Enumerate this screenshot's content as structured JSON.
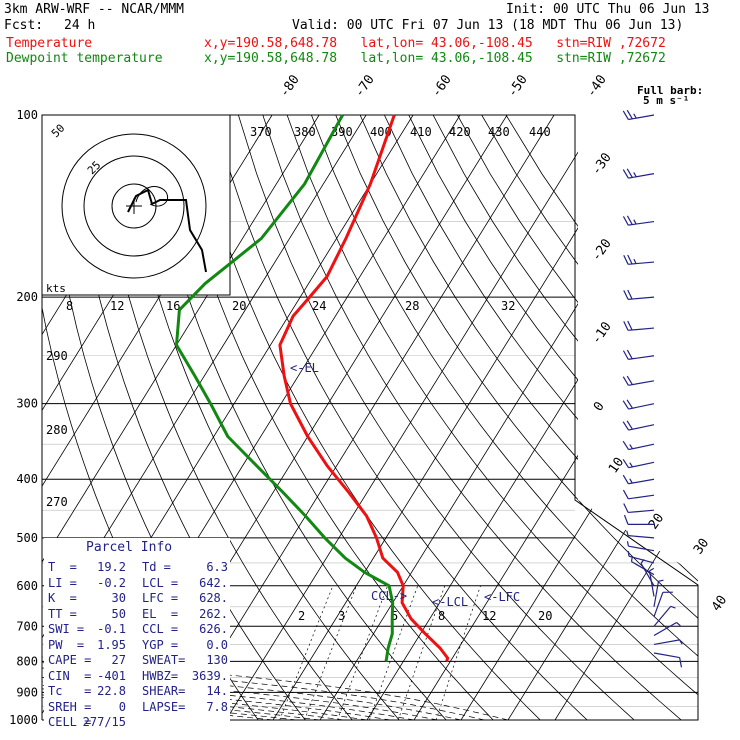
{
  "header": {
    "model": "3km ARW-WRF -- NCAR/MMM",
    "init": "Init: 00 UTC Thu 06 Jun 13",
    "fcst_label": "Fcst:",
    "fcst_value": "24 h",
    "valid": "Valid: 00 UTC Fri 07 Jun 13 (18 MDT Thu 06 Jun 13)",
    "temperature_label": "Temperature",
    "temperature_info": "x,y=190.58,648.78   lat,lon= 43.06,-108.45   stn=RIW ,72672",
    "dewpoint_label": "Dewpoint temperature",
    "dewpoint_info": "x,y=190.58,648.78   lat,lon= 43.06,-108.45   stn=RIW ,72672"
  },
  "colors": {
    "temperature": "#ee1111",
    "dewpoint": "#118811",
    "barbs": "#222288",
    "panel_text": "#222288",
    "grid": "#000000"
  },
  "chart_data": {
    "type": "line",
    "pressure_levels": [
      100,
      200,
      300,
      400,
      500,
      600,
      700,
      800,
      900,
      1000
    ],
    "pressure_labels": [
      "100",
      "200",
      "300",
      "400",
      "500",
      "600",
      "700",
      "800",
      "900",
      "1000"
    ],
    "isotherm_labels": [
      "-80",
      "-70",
      "-60",
      "-50",
      "-40",
      "-30",
      "-20",
      "-10",
      "0",
      "10",
      "20",
      "30",
      "40"
    ],
    "theta_labels": [
      "370",
      "380",
      "390",
      "400",
      "410",
      "420",
      "430",
      "440"
    ],
    "dry_adiabat_labels": [
      "290",
      "280",
      "270"
    ],
    "mixing_ratio_labels": [
      "2",
      "3",
      "5",
      "8",
      "12",
      "20"
    ],
    "series": [
      {
        "name": "Temperature",
        "p": [
          100,
          130,
          160,
          185,
          200,
          215,
          240,
          270,
          300,
          340,
          380,
          420,
          460,
          500,
          540,
          570,
          600,
          640,
          680,
          720,
          760,
          790,
          800
        ],
        "t": [
          -64,
          -60,
          -58,
          -57,
          -58,
          -59,
          -58,
          -53,
          -48,
          -40,
          -32,
          -24,
          -17,
          -12,
          -8,
          -3,
          0,
          2,
          6,
          11,
          16,
          19,
          19.2
        ]
      },
      {
        "name": "Dewpoint temperature",
        "p": [
          100,
          130,
          160,
          190,
          210,
          240,
          270,
          300,
          340,
          380,
          420,
          460,
          500,
          540,
          570,
          600,
          640,
          680,
          720,
          760,
          790,
          800
        ],
        "t": [
          -75,
          -74,
          -76,
          -82,
          -84,
          -80,
          -72,
          -65,
          -57,
          -47,
          -38,
          -30,
          -23,
          -16,
          -10,
          -3,
          0,
          2,
          4,
          5,
          6,
          6.3
        ]
      }
    ],
    "annotations": [
      {
        "text": "<-EL",
        "p": 262,
        "t": -42
      },
      {
        "text": "CCL->",
        "p": 626,
        "t": -8
      },
      {
        "text": "<-LCL",
        "p": 642,
        "t": 1
      },
      {
        "text": "<-LFC",
        "p": 628,
        "t": 9
      }
    ],
    "hodograph": {
      "rings_labels": [
        "50",
        "25"
      ],
      "units": "kts",
      "speed_labels": [
        "8",
        "12",
        "16",
        "20",
        "24",
        "28",
        "32"
      ]
    },
    "wind_barbs_label": {
      "title": "Full barb:",
      "value": "5 m s⁻¹"
    },
    "wind_barbs": [
      {
        "p": 100,
        "dir": 260,
        "spd": 12
      },
      {
        "p": 125,
        "dir": 260,
        "spd": 12
      },
      {
        "p": 150,
        "dir": 262,
        "spd": 12
      },
      {
        "p": 175,
        "dir": 265,
        "spd": 12
      },
      {
        "p": 200,
        "dir": 265,
        "spd": 11
      },
      {
        "p": 225,
        "dir": 265,
        "spd": 11
      },
      {
        "p": 250,
        "dir": 262,
        "spd": 10
      },
      {
        "p": 275,
        "dir": 260,
        "spd": 10
      },
      {
        "p": 300,
        "dir": 258,
        "spd": 9
      },
      {
        "p": 325,
        "dir": 258,
        "spd": 9
      },
      {
        "p": 350,
        "dir": 258,
        "spd": 8
      },
      {
        "p": 375,
        "dir": 258,
        "spd": 8
      },
      {
        "p": 400,
        "dir": 260,
        "spd": 7
      },
      {
        "p": 425,
        "dir": 262,
        "spd": 6
      },
      {
        "p": 450,
        "dir": 265,
        "spd": 5
      },
      {
        "p": 475,
        "dir": 270,
        "spd": 4
      },
      {
        "p": 500,
        "dir": 275,
        "spd": 3
      },
      {
        "p": 525,
        "dir": 280,
        "spd": 3
      },
      {
        "p": 550,
        "dir": 285,
        "spd": 2
      },
      {
        "p": 575,
        "dir": 300,
        "spd": 2
      },
      {
        "p": 600,
        "dir": 330,
        "spd": 2
      },
      {
        "p": 625,
        "dir": 350,
        "spd": 2
      },
      {
        "p": 650,
        "dir": 10,
        "spd": 3
      },
      {
        "p": 675,
        "dir": 20,
        "spd": 4
      },
      {
        "p": 700,
        "dir": 40,
        "spd": 3
      },
      {
        "p": 725,
        "dir": 60,
        "spd": 3
      },
      {
        "p": 750,
        "dir": 80,
        "spd": 3
      },
      {
        "p": 775,
        "dir": 100,
        "spd": 4
      }
    ]
  },
  "parcel_info": {
    "title": "Parcel Info",
    "rows": [
      [
        "T  =",
        "19.2",
        "Td =",
        "6.3"
      ],
      [
        "LI =",
        "-0.2",
        "LCL =",
        "642."
      ],
      [
        "K  =",
        "30",
        "LFC =",
        "628."
      ],
      [
        "TT =",
        "50",
        "EL  =",
        "262."
      ],
      [
        "SWI =",
        "-0.1",
        "CCL =",
        "626."
      ],
      [
        "PW  =",
        "1.95",
        "YGP =",
        "0.0"
      ],
      [
        "CAPE =",
        "27",
        "SWEAT=",
        "130"
      ],
      [
        "CIN  =",
        "-401",
        "HWBZ=",
        "3639."
      ],
      [
        "Tc   =",
        "22.8",
        "SHEAR=",
        "14."
      ],
      [
        "SREH =",
        "0",
        "LAPSE=",
        "7.8"
      ],
      [
        "CELL =",
        "277/15",
        "",
        ""
      ]
    ]
  }
}
